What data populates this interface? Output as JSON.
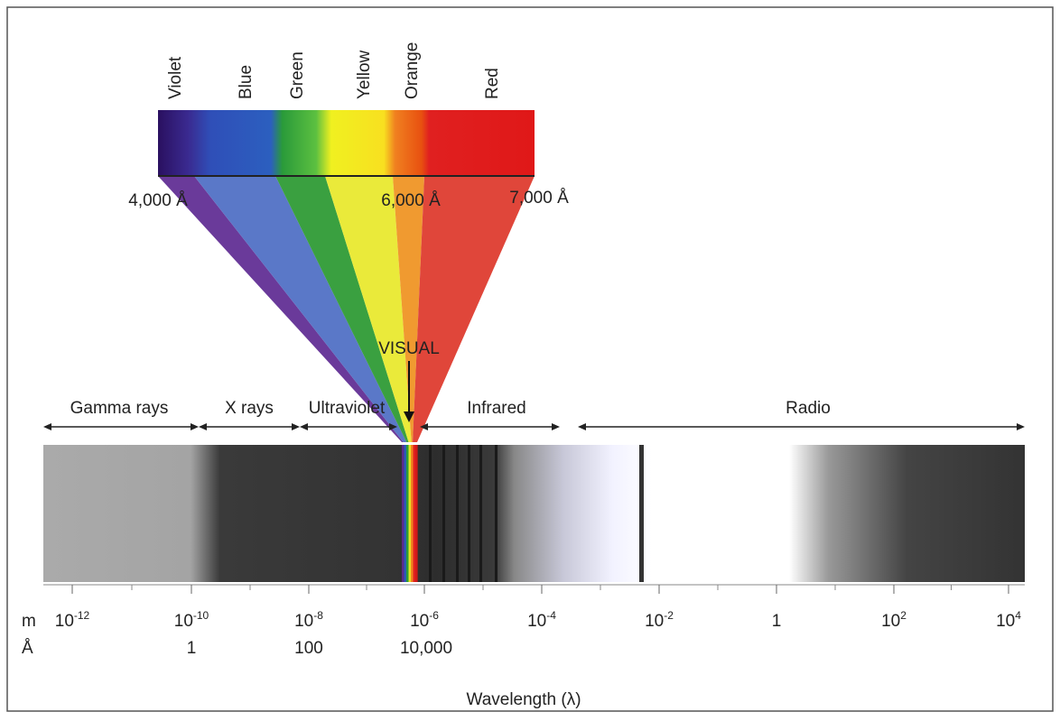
{
  "spectrum": {
    "colors": [
      "Violet",
      "Blue",
      "Green",
      "Yellow",
      "Orange",
      "Red"
    ],
    "angstrom_ticks": [
      "4,000 Å",
      "6,000 Å",
      "7,000 Å"
    ],
    "visual_label": "VISUAL"
  },
  "regions": [
    "Gamma rays",
    "X rays",
    "Ultraviolet",
    "Infrared",
    "Radio"
  ],
  "scale": {
    "meter_unit": "m",
    "angstrom_unit": "Å",
    "meter_labels": [
      {
        "base": "10",
        "exp": "-12"
      },
      {
        "base": "10",
        "exp": "-10"
      },
      {
        "base": "10",
        "exp": "-8"
      },
      {
        "base": "10",
        "exp": "-6"
      },
      {
        "base": "10",
        "exp": "-4"
      },
      {
        "base": "10",
        "exp": "-2"
      },
      {
        "base": "1"
      },
      {
        "base": "10",
        "exp": "2"
      },
      {
        "base": "10",
        "exp": "4"
      }
    ],
    "angstrom_labels": [
      "1",
      "100",
      "10,000"
    ],
    "axis_title": "Wavelength (λ)"
  }
}
